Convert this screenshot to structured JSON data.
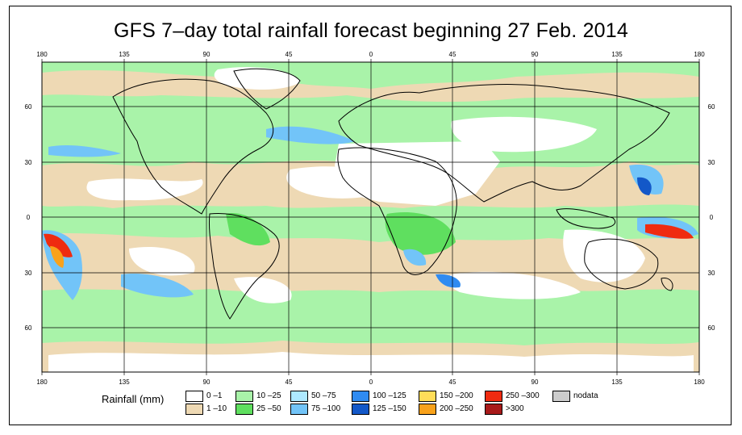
{
  "title": "GFS 7–day total rainfall forecast beginning 27 Feb. 2014",
  "top_axis": [
    "180",
    "135",
    "90",
    "45",
    "0",
    "45",
    "90",
    "135",
    "180"
  ],
  "bottom_axis": [
    "180",
    "135",
    "90",
    "45",
    "0",
    "45",
    "90",
    "135",
    "180"
  ],
  "left_axis": [
    "60",
    "30",
    "0",
    "30",
    "60"
  ],
  "right_axis": [
    "60",
    "30",
    "0",
    "30",
    "60"
  ],
  "legend": {
    "title": "Rainfall (mm)",
    "items": [
      {
        "label": "0 –1",
        "color": "#ffffff"
      },
      {
        "label": "1 –10",
        "color": "#eed9b4"
      },
      {
        "label": "10 –25",
        "color": "#a9f3a9"
      },
      {
        "label": "25 –50",
        "color": "#5fdf5f"
      },
      {
        "label": "50 –75",
        "color": "#aee9ff"
      },
      {
        "label": "75 –100",
        "color": "#72c4f8"
      },
      {
        "label": "100 –125",
        "color": "#2f8bf1"
      },
      {
        "label": "125 –150",
        "color": "#1358c8"
      },
      {
        "label": "150 –200",
        "color": "#ffdd59"
      },
      {
        "label": "200 –250",
        "color": "#f9a21b"
      },
      {
        "label": "250 –300",
        "color": "#ef2b10"
      },
      {
        "label": ">300",
        "color": "#a81a1a"
      },
      {
        "label": "nodata",
        "color": "#cccccc"
      }
    ]
  }
}
